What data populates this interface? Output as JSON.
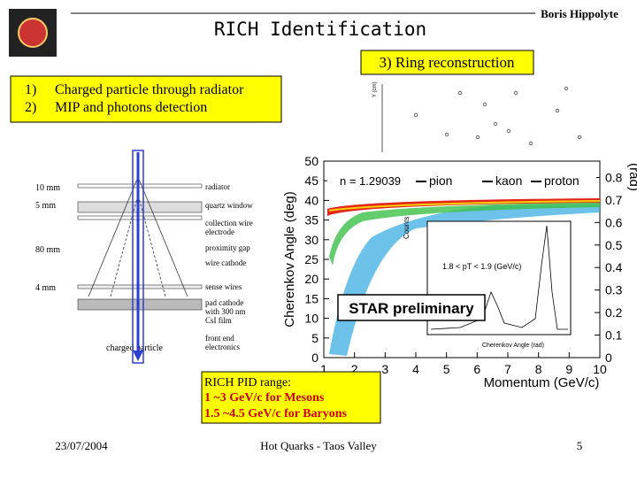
{
  "header": {
    "title": "RICH Identification",
    "author": "Boris Hippolyte"
  },
  "callout": "3) Ring reconstruction",
  "steps": [
    {
      "num": "1)",
      "text": "Charged particle through radiator"
    },
    {
      "num": "2)",
      "text": "MIP and photons detection"
    }
  ],
  "ring_plot": {
    "y_label": "Y (cm)"
  },
  "detector": {
    "dimensions": [
      "10 mm",
      "5 mm",
      "80 mm",
      "4 mm"
    ],
    "labels": [
      "radiator",
      "quartz window",
      "collection wire electrode",
      "proximity gap",
      "wire cathode",
      "sense wires",
      "pad cathode with 300 nm CsI film",
      "front end electronics"
    ],
    "particle": "charged particle"
  },
  "plot": {
    "y_label": "Cherenkov Angle (deg)",
    "y_ticks": [
      0,
      5,
      10,
      15,
      20,
      25,
      30,
      35,
      40,
      45,
      50
    ],
    "y2_label": "(rad)",
    "y2_ticks": [
      0,
      0.1,
      0.2,
      0.3,
      0.4,
      0.5,
      0.6,
      0.7,
      0.8
    ],
    "x_label": "Momentum (GeV/c)",
    "x_ticks": [
      1,
      2,
      3,
      4,
      5,
      6,
      7,
      8,
      9,
      10
    ],
    "index": "n = 1.29039",
    "legend": [
      "pion",
      "kaon",
      "proton"
    ],
    "stamp": "STAR preliminary",
    "inset": {
      "y_label": "Counts",
      "cut": "1.8 < pT < 1.9 (GeV/c)",
      "x_label": "Cherenkov Angle (rad)"
    }
  },
  "pid": {
    "heading": "RICH PID range:",
    "lines": [
      "1 ~3 GeV/c for Mesons",
      "1.5 ~4.5 GeV/c for Baryons"
    ]
  },
  "footer": {
    "date": "23/07/2004",
    "event": "Hot Quarks - Taos Valley",
    "page": "5"
  }
}
